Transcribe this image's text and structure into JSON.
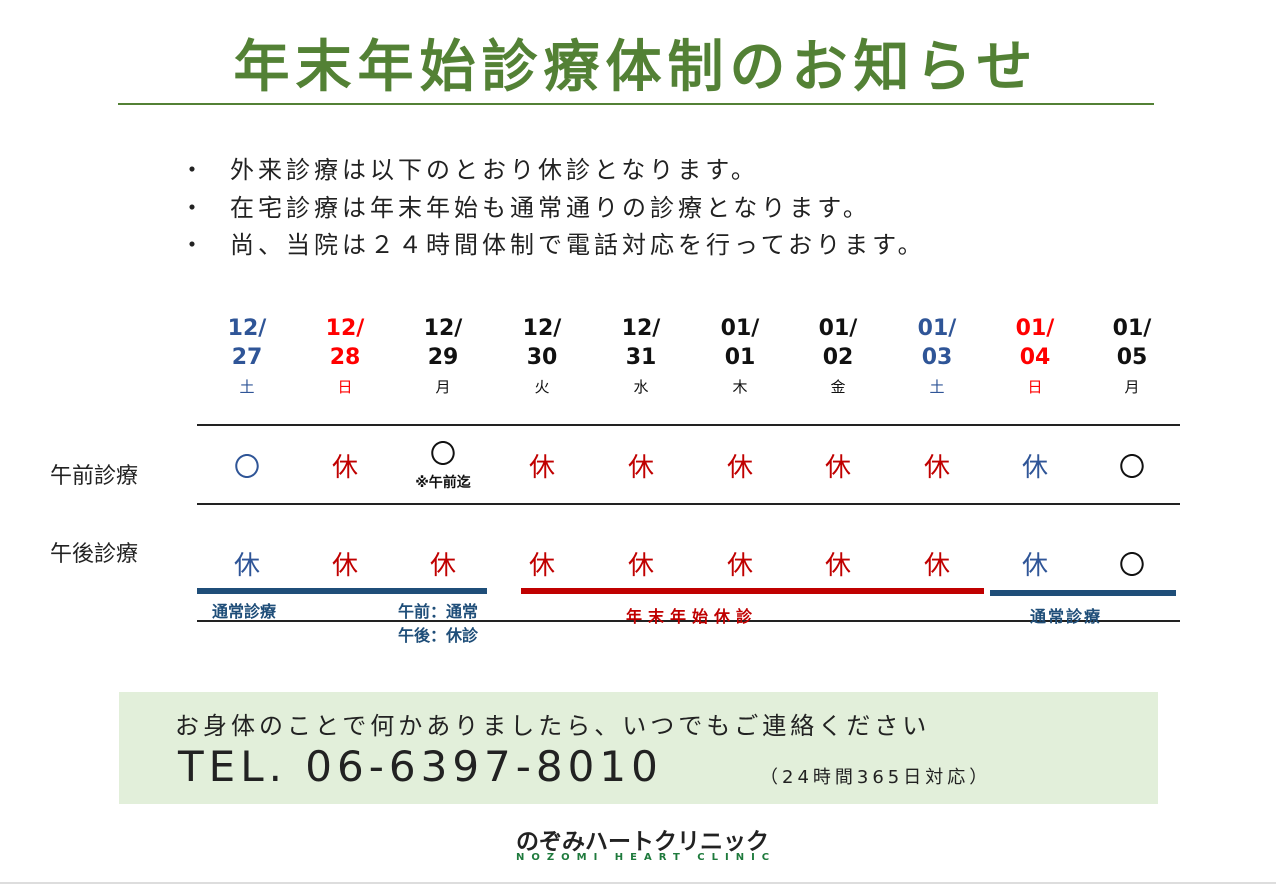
{
  "title": "年末年始診療体制のお知らせ",
  "bullets": [
    "外来診療は以下のとおり休診となります。",
    "在宅診療は年末年始も通常通りの診療となります。",
    "尚、当院は２４時間体制で電話対応を行っております。"
  ],
  "bullet_mark": "・",
  "colors": {
    "green": "#538135",
    "blue": "#2f5597",
    "red": "#ff0000",
    "dark_red": "#c00000",
    "navy": "#1f4e79",
    "contact_bg": "#e2efda"
  },
  "row_labels": {
    "am": "午前診療",
    "pm": "午後診療"
  },
  "days": [
    {
      "md": "12/",
      "d": "27",
      "wd": "土",
      "color": "blue",
      "am": "〇",
      "am_color": "blue",
      "pm": "休",
      "pm_color": "blue"
    },
    {
      "md": "12/",
      "d": "28",
      "wd": "日",
      "color": "red",
      "am": "休",
      "am_color": "dark_red",
      "pm": "休",
      "pm_color": "dark_red"
    },
    {
      "md": "12/",
      "d": "29",
      "wd": "月",
      "color": "black",
      "am": "〇",
      "am_color": "black",
      "am_note": "※午前迄",
      "pm": "休",
      "pm_color": "dark_red"
    },
    {
      "md": "12/",
      "d": "30",
      "wd": "火",
      "color": "black",
      "am": "休",
      "am_color": "dark_red",
      "pm": "休",
      "pm_color": "dark_red"
    },
    {
      "md": "12/",
      "d": "31",
      "wd": "水",
      "color": "black",
      "am": "休",
      "am_color": "dark_red",
      "pm": "休",
      "pm_color": "dark_red"
    },
    {
      "md": "01/",
      "d": "01",
      "wd": "木",
      "color": "black",
      "am": "休",
      "am_color": "dark_red",
      "pm": "休",
      "pm_color": "dark_red"
    },
    {
      "md": "01/",
      "d": "02",
      "wd": "金",
      "color": "black",
      "am": "休",
      "am_color": "dark_red",
      "pm": "休",
      "pm_color": "dark_red"
    },
    {
      "md": "01/",
      "d": "03",
      "wd": "土",
      "color": "blue",
      "am": "休",
      "am_color": "dark_red",
      "pm": "休",
      "pm_color": "dark_red"
    },
    {
      "md": "01/",
      "d": "04",
      "wd": "日",
      "color": "red",
      "am": "休",
      "am_color": "blue",
      "pm": "休",
      "pm_color": "blue"
    },
    {
      "md": "01/",
      "d": "05",
      "wd": "月",
      "color": "black",
      "am": "〇",
      "am_color": "black",
      "pm": "〇",
      "pm_color": "black"
    }
  ],
  "periods": {
    "normal1": "通常診療",
    "partial_am": "午前：通常",
    "partial_pm": "午後：休診",
    "holiday": "年末年始休診",
    "normal2": "通常診療"
  },
  "contact": {
    "line1": "お身体のことで何かありましたら、いつでもご連絡ください",
    "tel": "TEL. 06-6397-8010",
    "tel_note": "（24時間365日対応）"
  },
  "logo": {
    "jp": "のぞみハートクリニック",
    "en": "NOZOMI HEART CLINIC"
  }
}
